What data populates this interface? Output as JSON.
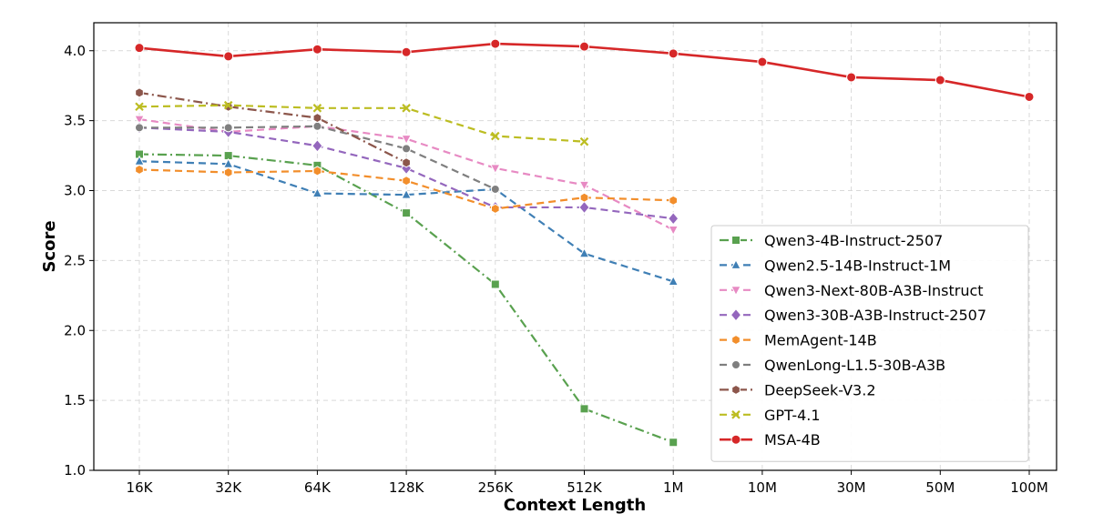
{
  "chart_data": {
    "type": "line",
    "xlabel": "Context Length",
    "ylabel": "Score",
    "categories": [
      "16K",
      "32K",
      "64K",
      "128K",
      "256K",
      "512K",
      "1M",
      "10M",
      "30M",
      "50M",
      "100M"
    ],
    "ylim": [
      1.0,
      4.2
    ],
    "yticks": [
      "1.0",
      "1.5",
      "2.0",
      "2.5",
      "3.0",
      "3.5",
      "4.0"
    ],
    "grid": true,
    "legend_position": "right",
    "series": [
      {
        "name": "Qwen3-4B-Instruct-2507",
        "color": "#59a14f",
        "marker": "square",
        "dash": "dashdot",
        "values": [
          3.26,
          3.25,
          3.18,
          2.84,
          2.33,
          1.44,
          1.2,
          null,
          null,
          null,
          null
        ]
      },
      {
        "name": "Qwen2.5-14B-Instruct-1M",
        "color": "#3f7fb5",
        "marker": "triangle-up",
        "dash": "dashed",
        "values": [
          3.21,
          3.19,
          2.98,
          2.97,
          3.01,
          2.55,
          2.35,
          null,
          null,
          null,
          null
        ]
      },
      {
        "name": "Qwen3-Next-80B-A3B-Instruct",
        "color": "#e78ac3",
        "marker": "triangle-down",
        "dash": "dashed",
        "values": [
          3.51,
          3.42,
          3.46,
          3.37,
          3.16,
          3.04,
          2.72,
          null,
          null,
          null,
          null
        ]
      },
      {
        "name": "Qwen3-30B-A3B-Instruct-2507",
        "color": "#9467bd",
        "marker": "diamond",
        "dash": "dashed",
        "values": [
          3.45,
          3.42,
          3.32,
          3.16,
          2.88,
          2.88,
          2.8,
          null,
          null,
          null,
          null
        ]
      },
      {
        "name": "MemAgent-14B",
        "color": "#f28e2b",
        "marker": "hexagon",
        "dash": "dashed",
        "values": [
          3.15,
          3.13,
          3.14,
          3.07,
          2.87,
          2.95,
          2.93,
          null,
          null,
          null,
          null
        ]
      },
      {
        "name": "QwenLong-L1.5-30B-A3B",
        "color": "#7f7f7f",
        "marker": "circle",
        "dash": "dashed",
        "values": [
          3.45,
          3.45,
          3.46,
          3.3,
          3.01,
          null,
          null,
          null,
          null,
          null,
          null
        ]
      },
      {
        "name": "DeepSeek-V3.2",
        "color": "#8c564b",
        "marker": "hexagon",
        "dash": "dashdot",
        "values": [
          3.7,
          3.6,
          3.52,
          3.2,
          null,
          null,
          null,
          null,
          null,
          null,
          null
        ]
      },
      {
        "name": "GPT-4.1",
        "color": "#bcbd22",
        "marker": "x",
        "dash": "dashed",
        "values": [
          3.6,
          3.61,
          3.59,
          3.59,
          3.39,
          3.35,
          null,
          null,
          null,
          null,
          null
        ]
      },
      {
        "name": "MSA-4B",
        "color": "#d62728",
        "marker": "circle-large",
        "dash": "solid",
        "values": [
          4.02,
          3.96,
          4.01,
          3.99,
          4.05,
          4.03,
          3.98,
          3.92,
          3.81,
          3.79,
          3.67
        ]
      }
    ]
  }
}
